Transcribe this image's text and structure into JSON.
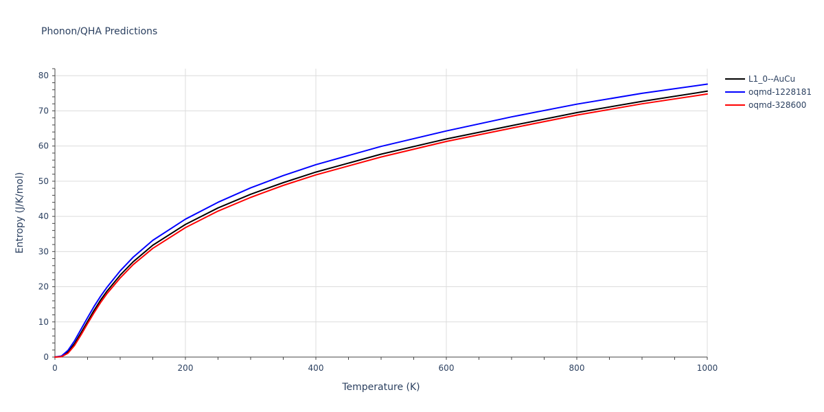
{
  "chart_data": {
    "type": "line",
    "title": "Phonon/QHA Predictions",
    "xlabel": "Temperature (K)",
    "ylabel": "Entropy (J/K/mol)",
    "xlim": [
      0,
      1000
    ],
    "ylim": [
      0,
      82
    ],
    "x_ticks": [
      "0",
      "200",
      "400",
      "600",
      "800",
      "1000"
    ],
    "y_ticks": [
      "0",
      "10",
      "20",
      "30",
      "40",
      "50",
      "60",
      "70",
      "80"
    ],
    "grid": true,
    "legend_position": "top-right",
    "series": [
      {
        "name": "L1_0--AuCu",
        "color": "#000000",
        "x": [
          0,
          10,
          20,
          30,
          40,
          50,
          60,
          70,
          80,
          100,
          120,
          150,
          200,
          250,
          300,
          350,
          400,
          500,
          600,
          700,
          800,
          900,
          1000
        ],
        "y": [
          0,
          0.2,
          1.4,
          3.8,
          6.9,
          10.1,
          13.3,
          16.2,
          18.8,
          23.3,
          27.1,
          31.8,
          37.7,
          42.4,
          46.3,
          49.6,
          52.6,
          57.7,
          62.0,
          65.8,
          69.5,
          72.7,
          75.6
        ]
      },
      {
        "name": "oqmd-1228181",
        "color": "#0000ff",
        "x": [
          0,
          10,
          20,
          30,
          40,
          50,
          60,
          70,
          80,
          100,
          120,
          150,
          200,
          250,
          300,
          350,
          400,
          500,
          600,
          700,
          800,
          900,
          1000
        ],
        "y": [
          0,
          0.3,
          1.9,
          4.6,
          7.9,
          11.2,
          14.4,
          17.3,
          19.9,
          24.5,
          28.4,
          33.2,
          39.2,
          44.0,
          48.1,
          51.6,
          54.7,
          59.9,
          64.3,
          68.3,
          71.9,
          75.0,
          77.6
        ]
      },
      {
        "name": "oqmd-328600",
        "color": "#ff0000",
        "x": [
          0,
          10,
          20,
          30,
          40,
          50,
          60,
          70,
          80,
          100,
          120,
          150,
          200,
          250,
          300,
          350,
          400,
          500,
          600,
          700,
          800,
          900,
          1000
        ],
        "y": [
          0,
          0.1,
          1.1,
          3.3,
          6.3,
          9.5,
          12.6,
          15.5,
          18.1,
          22.5,
          26.3,
          30.9,
          36.8,
          41.5,
          45.4,
          48.8,
          51.8,
          56.9,
          61.3,
          65.1,
          68.8,
          72.0,
          74.8
        ]
      }
    ]
  }
}
